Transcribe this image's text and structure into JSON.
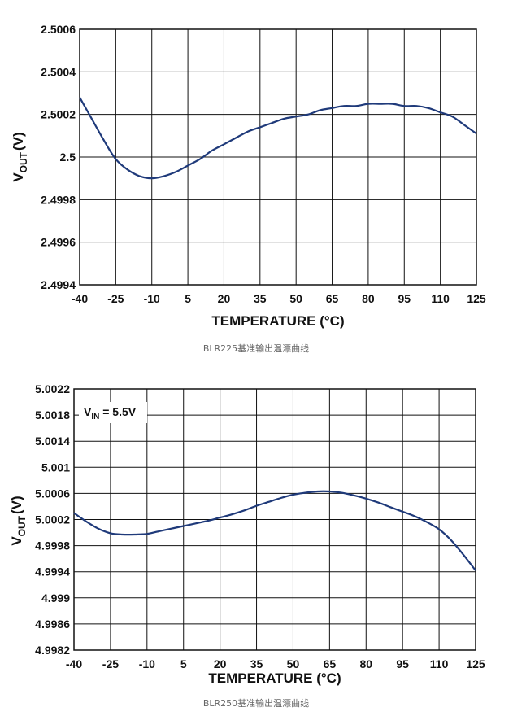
{
  "chart_data": [
    {
      "type": "line",
      "caption": "BLR225基准输出温漂曲线",
      "xlabel": "TEMPERATURE (°C)",
      "ylabel_main": "V",
      "ylabel_sub": "OUT",
      "ylabel_unit": "(V)",
      "x_ticks": [
        "-40",
        "-25",
        "-10",
        "5",
        "20",
        "35",
        "50",
        "65",
        "80",
        "95",
        "110",
        "125"
      ],
      "y_ticks": [
        "2.5006",
        "2.5004",
        "2.5002",
        "2.5",
        "2.4998",
        "2.4996",
        "2.4994"
      ],
      "xlim": [
        -40,
        125
      ],
      "ylim": [
        2.4994,
        2.5006
      ],
      "grid": true,
      "line_color": "#1f3a7a",
      "series": [
        {
          "x": [
            -40,
            -35,
            -30,
            -25,
            -20,
            -15,
            -10,
            -5,
            0,
            5,
            10,
            15,
            20,
            25,
            30,
            35,
            40,
            45,
            50,
            55,
            60,
            65,
            70,
            75,
            80,
            85,
            90,
            95,
            100,
            105,
            110,
            115,
            120,
            125
          ],
          "y": [
            2.50028,
            2.50018,
            2.50008,
            2.49999,
            2.49994,
            2.49991,
            2.4999,
            2.49991,
            2.49993,
            2.49996,
            2.49999,
            2.50003,
            2.50006,
            2.50009,
            2.50012,
            2.50014,
            2.50016,
            2.50018,
            2.50019,
            2.5002,
            2.50022,
            2.50023,
            2.50024,
            2.50024,
            2.50025,
            2.50025,
            2.50025,
            2.50024,
            2.50024,
            2.50023,
            2.50021,
            2.50019,
            2.50015,
            2.50011
          ]
        }
      ]
    },
    {
      "type": "line",
      "caption": "BLR250基准输出温漂曲线",
      "xlabel": "TEMPERATURE (°C)",
      "ylabel_main": "V",
      "ylabel_sub": "OUT",
      "ylabel_unit": "(V)",
      "annotation_main": "V",
      "annotation_sub": "IN",
      "annotation_rest": " = 5.5V",
      "x_ticks": [
        "-40",
        "-25",
        "-10",
        "5",
        "20",
        "35",
        "50",
        "65",
        "80",
        "95",
        "110",
        "125"
      ],
      "y_ticks": [
        "5.0022",
        "5.0018",
        "5.0014",
        "5.001",
        "5.0006",
        "5.0002",
        "4.9998",
        "4.9994",
        "4.999",
        "4.9986",
        "4.9982"
      ],
      "xlim": [
        -40,
        125
      ],
      "ylim": [
        4.9982,
        5.0022
      ],
      "grid": true,
      "line_color": "#1f3a7a",
      "series": [
        {
          "x": [
            -40,
            -35,
            -30,
            -25,
            -20,
            -15,
            -10,
            -5,
            0,
            5,
            10,
            15,
            20,
            25,
            30,
            35,
            40,
            45,
            50,
            55,
            60,
            65,
            70,
            75,
            80,
            85,
            90,
            95,
            100,
            105,
            110,
            115,
            120,
            125
          ],
          "y": [
            5.0003,
            5.00017,
            5.00006,
            4.99999,
            4.99997,
            4.99997,
            4.99998,
            5.00002,
            5.00006,
            5.0001,
            5.00014,
            5.00018,
            5.00023,
            5.00028,
            5.00034,
            5.00041,
            5.00047,
            5.00053,
            5.00058,
            5.00061,
            5.00063,
            5.00063,
            5.00061,
            5.00057,
            5.00052,
            5.00046,
            5.00039,
            5.00032,
            5.00025,
            5.00016,
            5.00005,
            4.99988,
            4.99966,
            4.99942
          ]
        }
      ]
    }
  ]
}
